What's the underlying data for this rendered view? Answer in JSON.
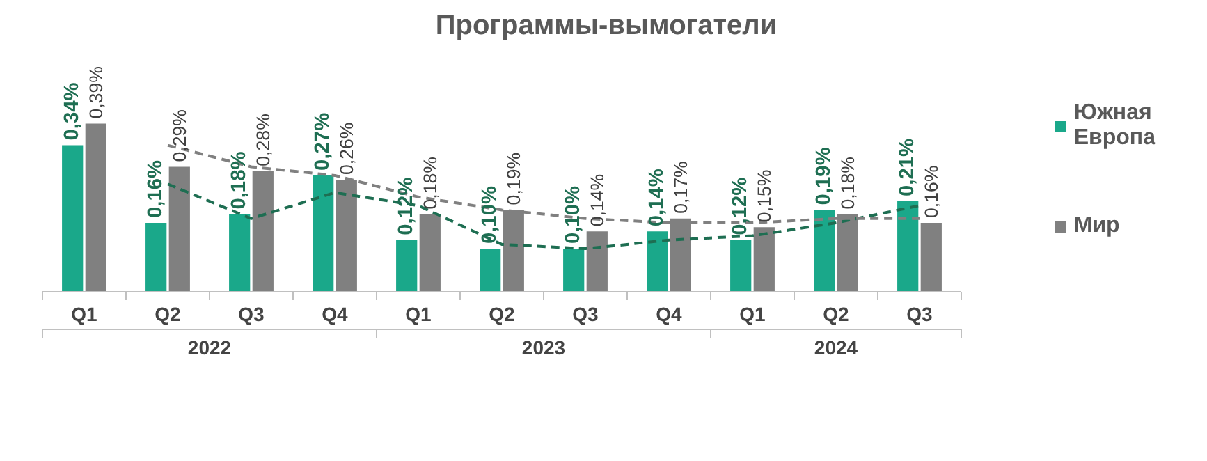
{
  "chart_data": {
    "type": "bar",
    "title": "Программы-вымогатели",
    "categories": [
      "Q1",
      "Q2",
      "Q3",
      "Q4",
      "Q1",
      "Q2",
      "Q3",
      "Q4",
      "Q1",
      "Q2",
      "Q3"
    ],
    "annotations": [
      "2022",
      "2023",
      "2024"
    ],
    "legend": "right",
    "series": [
      {
        "name": "Южная\nЕвропа",
        "color": "#1aa88a",
        "values": [
          0.34,
          0.16,
          0.18,
          0.27,
          0.12,
          0.1,
          0.1,
          0.14,
          0.12,
          0.19,
          0.21
        ],
        "value_labels": [
          "0,34%",
          "0,16%",
          "0,18%",
          "0,27%",
          "0,12%",
          "0,10%",
          "0,10%",
          "0,14%",
          "0,12%",
          "0,19%",
          "0,21%"
        ]
      },
      {
        "name": "Мир",
        "color": "#808080",
        "values": [
          0.39,
          0.29,
          0.28,
          0.26,
          0.18,
          0.19,
          0.14,
          0.17,
          0.15,
          0.18,
          0.16
        ],
        "value_labels": [
          "0,39%",
          "0,29%",
          "0,28%",
          "0,26%",
          "0,18%",
          "0,19%",
          "0,14%",
          "0,17%",
          "0,15%",
          "0,18%",
          "0,16%"
        ]
      },
      {
        "type": "line",
        "color": "#1e6e52",
        "line_style": "dashed",
        "values": [
          null,
          0.25,
          0.17,
          0.23,
          0.2,
          0.11,
          0.1,
          0.12,
          0.13,
          0.16,
          0.2
        ]
      },
      {
        "type": "line",
        "color": "#808080",
        "line_style": "dashed",
        "values": [
          null,
          0.34,
          0.29,
          0.27,
          0.22,
          0.19,
          0.17,
          0.16,
          0.16,
          0.17,
          0.17
        ]
      }
    ]
  }
}
